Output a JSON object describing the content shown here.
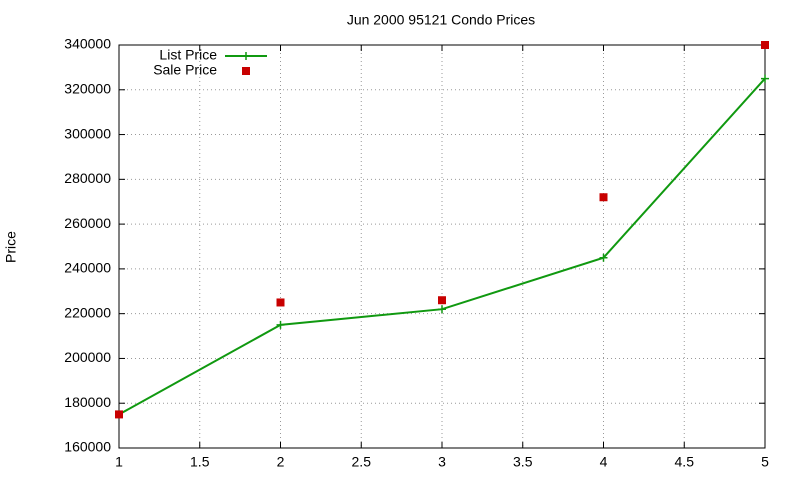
{
  "chart_data": {
    "type": "line",
    "title": "Jun 2000 95121 Condo Prices",
    "y_label": "Price",
    "x": [
      1,
      2,
      3,
      4,
      5
    ],
    "series": [
      {
        "name": "List Price",
        "color": "#109910",
        "marker": "plus",
        "line": true,
        "values": [
          175000,
          215000,
          222000,
          245000,
          325000
        ]
      },
      {
        "name": "Sale Price",
        "color": "#c80000",
        "marker": "square",
        "line": false,
        "values": [
          175000,
          225000,
          226000,
          272000,
          340000
        ]
      }
    ],
    "xlim": [
      1,
      5
    ],
    "xticks": [
      1,
      1.5,
      2,
      2.5,
      3,
      3.5,
      4,
      4.5,
      5
    ],
    "ylim": [
      160000,
      340000
    ],
    "yticks": [
      160000,
      180000,
      200000,
      220000,
      240000,
      260000,
      280000,
      300000,
      320000,
      340000
    ],
    "grid": true,
    "legend": "top-left"
  }
}
